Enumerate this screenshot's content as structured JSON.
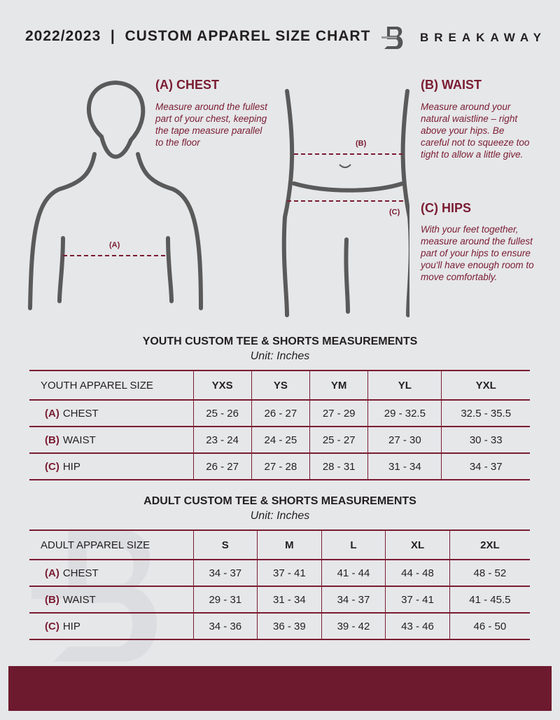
{
  "header": {
    "title": "2022/2023  |  CUSTOM APPAREL SIZE CHART",
    "brand": "BREAKAWAY"
  },
  "guide": {
    "chest": {
      "heading": "(A) CHEST",
      "text": "Measure around the fullest part of your chest, keeping the tape measure parallel to the floor",
      "marker": "(A)"
    },
    "waist": {
      "heading": "(B) WAIST",
      "text": "Measure around your natural waistline – right above your hips. Be careful not to squeeze too tight to allow a little give.",
      "marker": "(B)"
    },
    "hips": {
      "heading": "(C) HIPS",
      "text": "With your feet together, measure around the fullest part of your hips to ensure you'll have enough room to move comfortably.",
      "marker": "(C)"
    }
  },
  "youth": {
    "title": "YOUTH CUSTOM TEE & SHORTS MEASUREMENTS",
    "unit": "Unit: Inches",
    "size_label": "YOUTH APPAREL SIZE",
    "sizes": [
      "YXS",
      "YS",
      "YM",
      "YL",
      "YXL"
    ],
    "rows": [
      {
        "letter": "(A)",
        "name": "CHEST",
        "values": [
          "25 - 26",
          "26 - 27",
          "27 - 29",
          "29 - 32.5",
          "32.5 - 35.5"
        ]
      },
      {
        "letter": "(B)",
        "name": "WAIST",
        "values": [
          "23 - 24",
          "24 - 25",
          "25 - 27",
          "27 - 30",
          "30 - 33"
        ]
      },
      {
        "letter": "(C)",
        "name": "HIP",
        "values": [
          "26 - 27",
          "27 - 28",
          "28 - 31",
          "31 - 34",
          "34 - 37"
        ]
      }
    ]
  },
  "adult": {
    "title": "ADULT CUSTOM TEE & SHORTS MEASUREMENTS",
    "unit": "Unit: Inches",
    "size_label": "ADULT APPAREL SIZE",
    "sizes": [
      "S",
      "M",
      "L",
      "XL",
      "2XL"
    ],
    "rows": [
      {
        "letter": "(A)",
        "name": "CHEST",
        "values": [
          "34 - 37",
          "37 - 41",
          "41 - 44",
          "44 - 48",
          "48 - 52"
        ]
      },
      {
        "letter": "(B)",
        "name": "WAIST",
        "values": [
          "29 - 31",
          "31 - 34",
          "34 - 37",
          "37 - 41",
          "41 - 45.5"
        ]
      },
      {
        "letter": "(C)",
        "name": "HIP",
        "values": [
          "34 - 36",
          "36 - 39",
          "39 - 42",
          "43 - 46",
          "46 - 50"
        ]
      }
    ]
  },
  "colors": {
    "accent": "#7a1c32",
    "footer": "#6e1a2e",
    "background": "#e6e7e9"
  }
}
